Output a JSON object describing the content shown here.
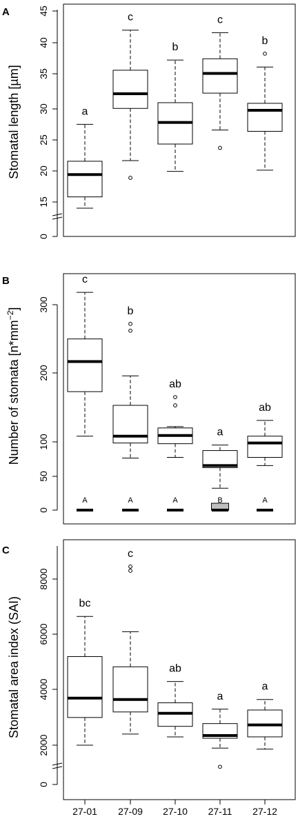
{
  "figure": {
    "categories": [
      "27-01",
      "27-09",
      "27-10",
      "27-11",
      "27-12"
    ],
    "colors": {
      "ink": "#000000",
      "fill_white": "#ffffff",
      "fill_gray": "#bebebe"
    }
  },
  "chart_data": [
    {
      "type": "box",
      "panel_label": "A",
      "ylabel": "Stomatal length [µm]",
      "ylim": [
        0,
        46
      ],
      "axis_break": true,
      "yticks": [
        "0",
        "15",
        "20",
        "25",
        "30",
        "35",
        "40",
        "45"
      ],
      "categories": [
        "27-01",
        "27-09",
        "27-10",
        "27-11",
        "27-12"
      ],
      "boxes": [
        {
          "category": "27-01",
          "min": 12.3,
          "q1": 15.8,
          "median": 19.3,
          "q3": 21.4,
          "max": 27.2,
          "outliers": [],
          "letter": "a",
          "fill": "#ffffff"
        },
        {
          "category": "27-09",
          "min": 21.5,
          "q1": 29.7,
          "median": 32.0,
          "q3": 35.7,
          "max": 42.0,
          "outliers": [
            18.8
          ],
          "letter": "c",
          "fill": "#ffffff"
        },
        {
          "category": "27-10",
          "min": 19.8,
          "q1": 24.1,
          "median": 27.5,
          "q3": 30.6,
          "max": 37.3,
          "outliers": [],
          "letter": "b",
          "fill": "#ffffff"
        },
        {
          "category": "27-11",
          "min": 26.3,
          "q1": 32.1,
          "median": 35.2,
          "q3": 37.5,
          "max": 41.6,
          "outliers": [
            23.5
          ],
          "letter": "c",
          "fill": "#ffffff"
        },
        {
          "category": "27-12",
          "min": 20.0,
          "q1": 26.1,
          "median": 29.4,
          "q3": 30.5,
          "max": 36.2,
          "outliers": [
            38.3
          ],
          "letter": "b",
          "fill": "#ffffff"
        }
      ]
    },
    {
      "type": "box",
      "panel_label": "B",
      "ylabel_main": "Number of stomata [n*mm",
      "ylabel_sup": "−2",
      "ylabel_end": "]",
      "ylim": [
        0,
        340
      ],
      "axis_break": false,
      "yticks": [
        "0",
        "50",
        "100",
        "200",
        "300"
      ],
      "categories": [
        "27-01",
        "27-09",
        "27-10",
        "27-11",
        "27-12"
      ],
      "boxes": [
        {
          "category": "27-01",
          "min": 108,
          "q1": 173,
          "median": 217,
          "q3": 250,
          "max": 318,
          "outliers": [],
          "letter": "c",
          "fill": "#ffffff"
        },
        {
          "category": "27-09",
          "min": 76,
          "q1": 98,
          "median": 108,
          "q3": 153,
          "max": 196,
          "outliers": [
            262,
            272
          ],
          "letter": "b",
          "fill": "#ffffff"
        },
        {
          "category": "27-10",
          "min": 77,
          "q1": 97,
          "median": 109,
          "q3": 120,
          "max": 122,
          "outliers": [
            153,
            165
          ],
          "letter": "ab",
          "fill": "#ffffff"
        },
        {
          "category": "27-11",
          "min": 32,
          "q1": 62,
          "median": 65,
          "q3": 87,
          "max": 95,
          "outliers": [],
          "letter": "a",
          "fill": "#ffffff"
        },
        {
          "category": "27-12",
          "min": 65,
          "q1": 77,
          "median": 98,
          "q3": 108,
          "max": 131,
          "outliers": [],
          "letter": "ab",
          "fill": "#ffffff"
        },
        {
          "category": "27-01",
          "min": 0,
          "q1": 0,
          "median": 0,
          "q3": 0,
          "max": 0,
          "outliers": [],
          "letter": "A",
          "fill": "#ffffff",
          "zero_group": true
        },
        {
          "category": "27-09",
          "min": 0,
          "q1": 0,
          "median": 0,
          "q3": 0,
          "max": 0,
          "outliers": [],
          "letter": "A",
          "fill": "#ffffff",
          "zero_group": true
        },
        {
          "category": "27-10",
          "min": 0,
          "q1": 0,
          "median": 0,
          "q3": 0,
          "max": 0,
          "outliers": [],
          "letter": "A",
          "fill": "#ffffff",
          "zero_group": true
        },
        {
          "category": "27-11",
          "min": 0,
          "q1": 0,
          "median": 0,
          "q3": 10,
          "max": 10,
          "outliers": [],
          "letter": "B",
          "fill": "#bebebe",
          "zero_group": true
        },
        {
          "category": "27-12",
          "min": 0,
          "q1": 0,
          "median": 0,
          "q3": 0,
          "max": 0,
          "outliers": [],
          "letter": "A",
          "fill": "#ffffff",
          "zero_group": true
        }
      ]
    },
    {
      "type": "box",
      "panel_label": "C",
      "ylabel": "Stomatal area index (SAI)",
      "ylim": [
        0,
        9000
      ],
      "axis_break": true,
      "yticks": [
        "0",
        "2000",
        "4000",
        "6000",
        "8000"
      ],
      "xticks": [
        "27-01",
        "27-09",
        "27-10",
        "27-11",
        "27-12"
      ],
      "categories": [
        "27-01",
        "27-09",
        "27-10",
        "27-11",
        "27-12"
      ],
      "boxes": [
        {
          "category": "27-01",
          "min": 2000,
          "q1": 3000,
          "median": 3700,
          "q3": 5200,
          "max": 6650,
          "outliers": [],
          "letter": "bc",
          "fill": "#ffffff"
        },
        {
          "category": "27-09",
          "min": 2400,
          "q1": 3200,
          "median": 3650,
          "q3": 4830,
          "max": 6100,
          "outliers": [
            8300,
            8450
          ],
          "letter": "c",
          "fill": "#ffffff"
        },
        {
          "category": "27-10",
          "min": 2300,
          "q1": 2680,
          "median": 3150,
          "q3": 3530,
          "max": 4300,
          "outliers": [],
          "letter": "ab",
          "fill": "#ffffff"
        },
        {
          "category": "27-11",
          "min": 1850,
          "q1": 2250,
          "median": 2350,
          "q3": 2780,
          "max": 3300,
          "outliers": [
            900
          ],
          "letter": "a",
          "fill": "#ffffff"
        },
        {
          "category": "27-12",
          "min": 1800,
          "q1": 2300,
          "median": 2730,
          "q3": 3270,
          "max": 3650,
          "outliers": [],
          "letter": "a",
          "fill": "#ffffff"
        }
      ]
    }
  ]
}
